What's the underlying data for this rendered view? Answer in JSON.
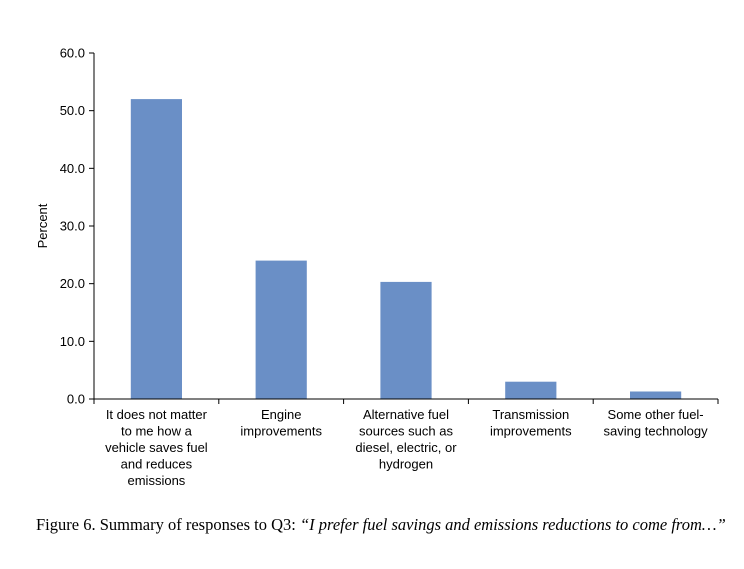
{
  "chart_data": {
    "type": "bar",
    "ylabel": "Percent",
    "xlabel": "",
    "ylim": [
      0,
      60
    ],
    "yticks": [
      "0.0",
      "10.0",
      "20.0",
      "30.0",
      "40.0",
      "50.0",
      "60.0"
    ],
    "bar_color": "#6a8fc6",
    "grid": false,
    "categories": [
      [
        "It does not matter",
        "to me how a",
        "vehicle saves fuel",
        "and reduces",
        "emissions"
      ],
      [
        "Engine",
        "improvements"
      ],
      [
        "Alternative fuel",
        "sources such as",
        "diesel, electric, or",
        "hydrogen"
      ],
      [
        "Transmission",
        "improvements"
      ],
      [
        "Some other fuel-",
        "saving technology"
      ]
    ],
    "values": [
      52.0,
      24.0,
      20.3,
      3.0,
      1.3
    ]
  },
  "caption": {
    "prefix": "Figure 6.  Summary of responses to Q3: ",
    "quote": "“I prefer fuel savings and emissions reductions to come from…”"
  }
}
